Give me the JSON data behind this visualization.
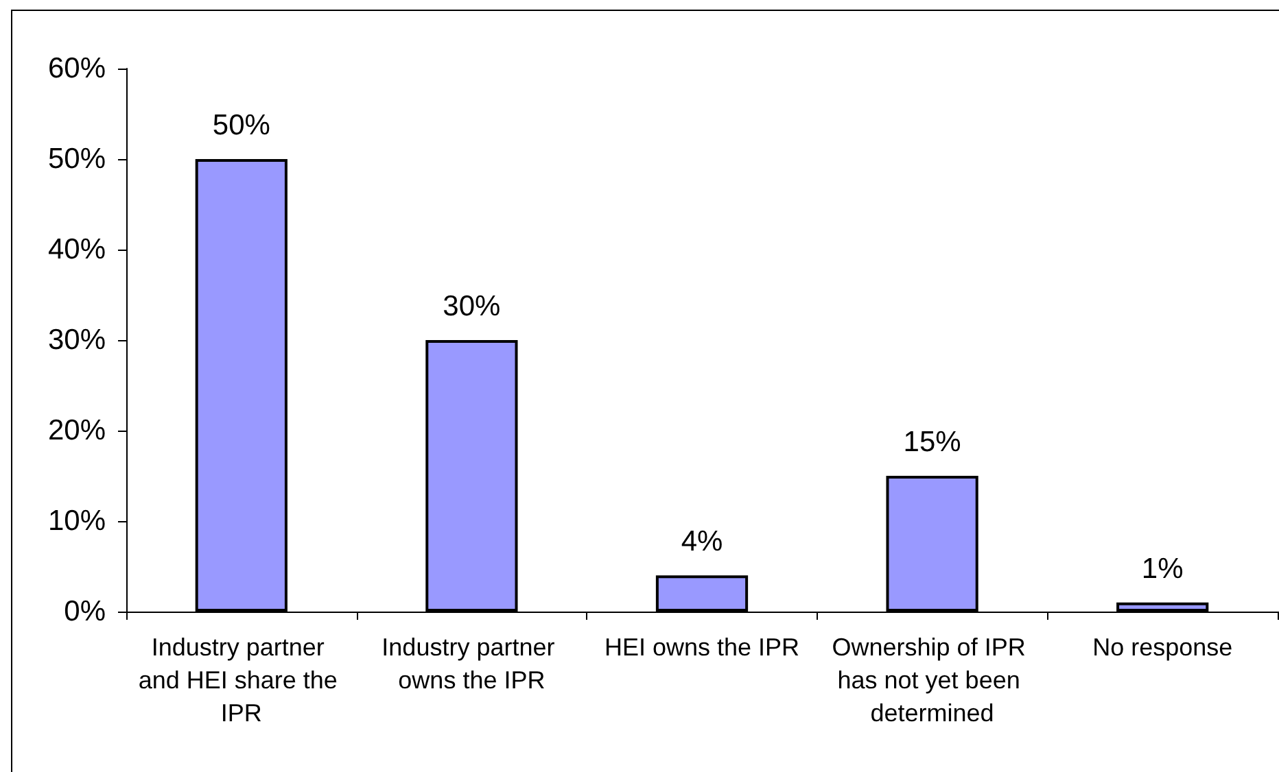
{
  "chart_data": {
    "type": "bar",
    "categories": [
      "Industry partner and HEI share the IPR",
      "Industry partner owns the IPR",
      "HEI owns the IPR",
      "Ownership of IPR has not yet been determined",
      "No response"
    ],
    "values": [
      50,
      30,
      4,
      15,
      1
    ],
    "color": "#9999ff",
    "value_labels": [
      "50%",
      "30%",
      "4%",
      "15%",
      "1%"
    ],
    "ylim": [
      0,
      60
    ],
    "yticks": [
      {
        "value": 0,
        "label": "0%"
      },
      {
        "value": 10,
        "label": "10%"
      },
      {
        "value": 20,
        "label": "20%"
      },
      {
        "value": 30,
        "label": "30%"
      },
      {
        "value": 40,
        "label": "40%"
      },
      {
        "value": 50,
        "label": "50%"
      },
      {
        "value": 60,
        "label": "60%"
      }
    ],
    "grid": false
  }
}
